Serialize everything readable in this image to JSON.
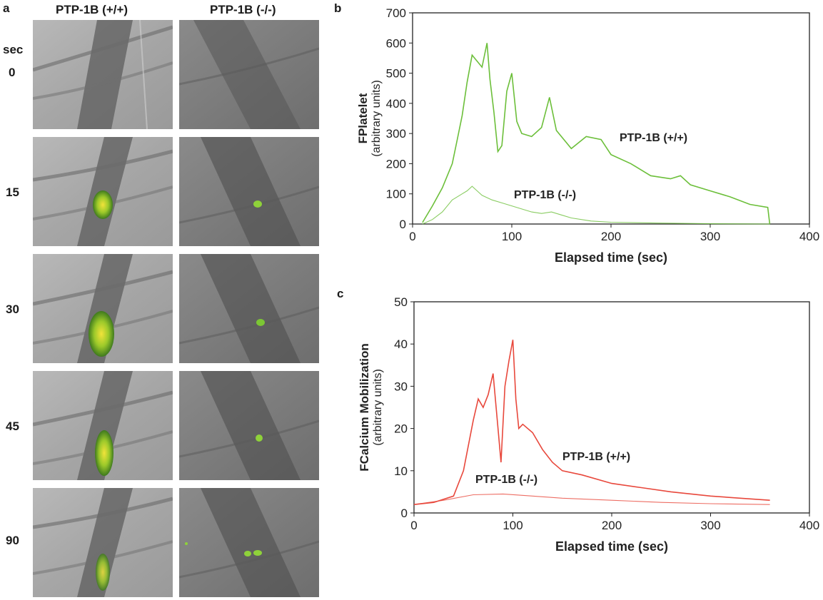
{
  "panel_a": {
    "letter": "a",
    "columns": [
      "PTP-1B (+/+)",
      "PTP-1B (-/-)"
    ],
    "time_unit": "sec",
    "rows": [
      "0",
      "15",
      "30",
      "45",
      "90"
    ]
  },
  "chart_data": [
    {
      "letter": "b",
      "type": "line",
      "xlabel": "Elapsed time (sec)",
      "ylabel": "FPlatelet",
      "ylabel_sub": "(arbitrary units)",
      "xlim": [
        0,
        400
      ],
      "ylim": [
        0,
        700
      ],
      "xticks": [
        "0",
        "100",
        "200",
        "300",
        "400"
      ],
      "yticks": [
        "0",
        "100",
        "200",
        "300",
        "400",
        "500",
        "600",
        "700"
      ],
      "grid": false,
      "color": "#6cbf3a",
      "series": [
        {
          "name": "PTP-1B (+/+)",
          "x": [
            10,
            20,
            30,
            40,
            45,
            50,
            55,
            60,
            65,
            70,
            75,
            78,
            82,
            86,
            90,
            95,
            100,
            105,
            110,
            120,
            130,
            138,
            145,
            160,
            175,
            190,
            200,
            220,
            240,
            260,
            270,
            280,
            300,
            320,
            340,
            358,
            360
          ],
          "y": [
            5,
            60,
            120,
            200,
            280,
            360,
            470,
            560,
            540,
            520,
            600,
            480,
            370,
            240,
            260,
            440,
            500,
            340,
            300,
            290,
            320,
            420,
            310,
            250,
            290,
            280,
            230,
            200,
            160,
            150,
            160,
            130,
            110,
            90,
            65,
            55,
            0
          ]
        },
        {
          "name": "PTP-1B (-/-)",
          "x": [
            10,
            20,
            30,
            40,
            50,
            55,
            60,
            65,
            70,
            80,
            90,
            100,
            110,
            120,
            130,
            140,
            150,
            160,
            180,
            200,
            250,
            300,
            360
          ],
          "y": [
            0,
            15,
            40,
            80,
            100,
            110,
            125,
            110,
            95,
            80,
            70,
            60,
            50,
            40,
            35,
            40,
            30,
            20,
            10,
            6,
            3,
            1,
            0
          ]
        }
      ]
    },
    {
      "letter": "c",
      "type": "line",
      "xlabel": "Elapsed time (sec)",
      "ylabel": "FCalcium Mobilization",
      "ylabel_sub": "(arbitrary units)",
      "xlim": [
        0,
        400
      ],
      "ylim": [
        0,
        50
      ],
      "xticks": [
        "0",
        "100",
        "200",
        "300",
        "400"
      ],
      "yticks": [
        "0",
        "10",
        "20",
        "30",
        "40",
        "50"
      ],
      "grid": false,
      "color": "#e8483c",
      "series": [
        {
          "name": "PTP-1B (+/+)",
          "x": [
            0,
            20,
            40,
            50,
            60,
            65,
            70,
            75,
            80,
            85,
            88,
            92,
            96,
            100,
            103,
            106,
            110,
            120,
            130,
            140,
            150,
            170,
            200,
            230,
            260,
            300,
            330,
            360
          ],
          "y": [
            2,
            2.5,
            4,
            10,
            22,
            27,
            25,
            28,
            33,
            20,
            12,
            30,
            36,
            41,
            27,
            20,
            21,
            19,
            15,
            12,
            10,
            9,
            7,
            6,
            5,
            4,
            3.5,
            3
          ]
        },
        {
          "name": "PTP-1B (-/-)",
          "x": [
            0,
            30,
            60,
            90,
            120,
            150,
            200,
            250,
            300,
            360
          ],
          "y": [
            2,
            3,
            4.3,
            4.5,
            4,
            3.5,
            3,
            2.5,
            2.2,
            2
          ]
        }
      ]
    }
  ]
}
